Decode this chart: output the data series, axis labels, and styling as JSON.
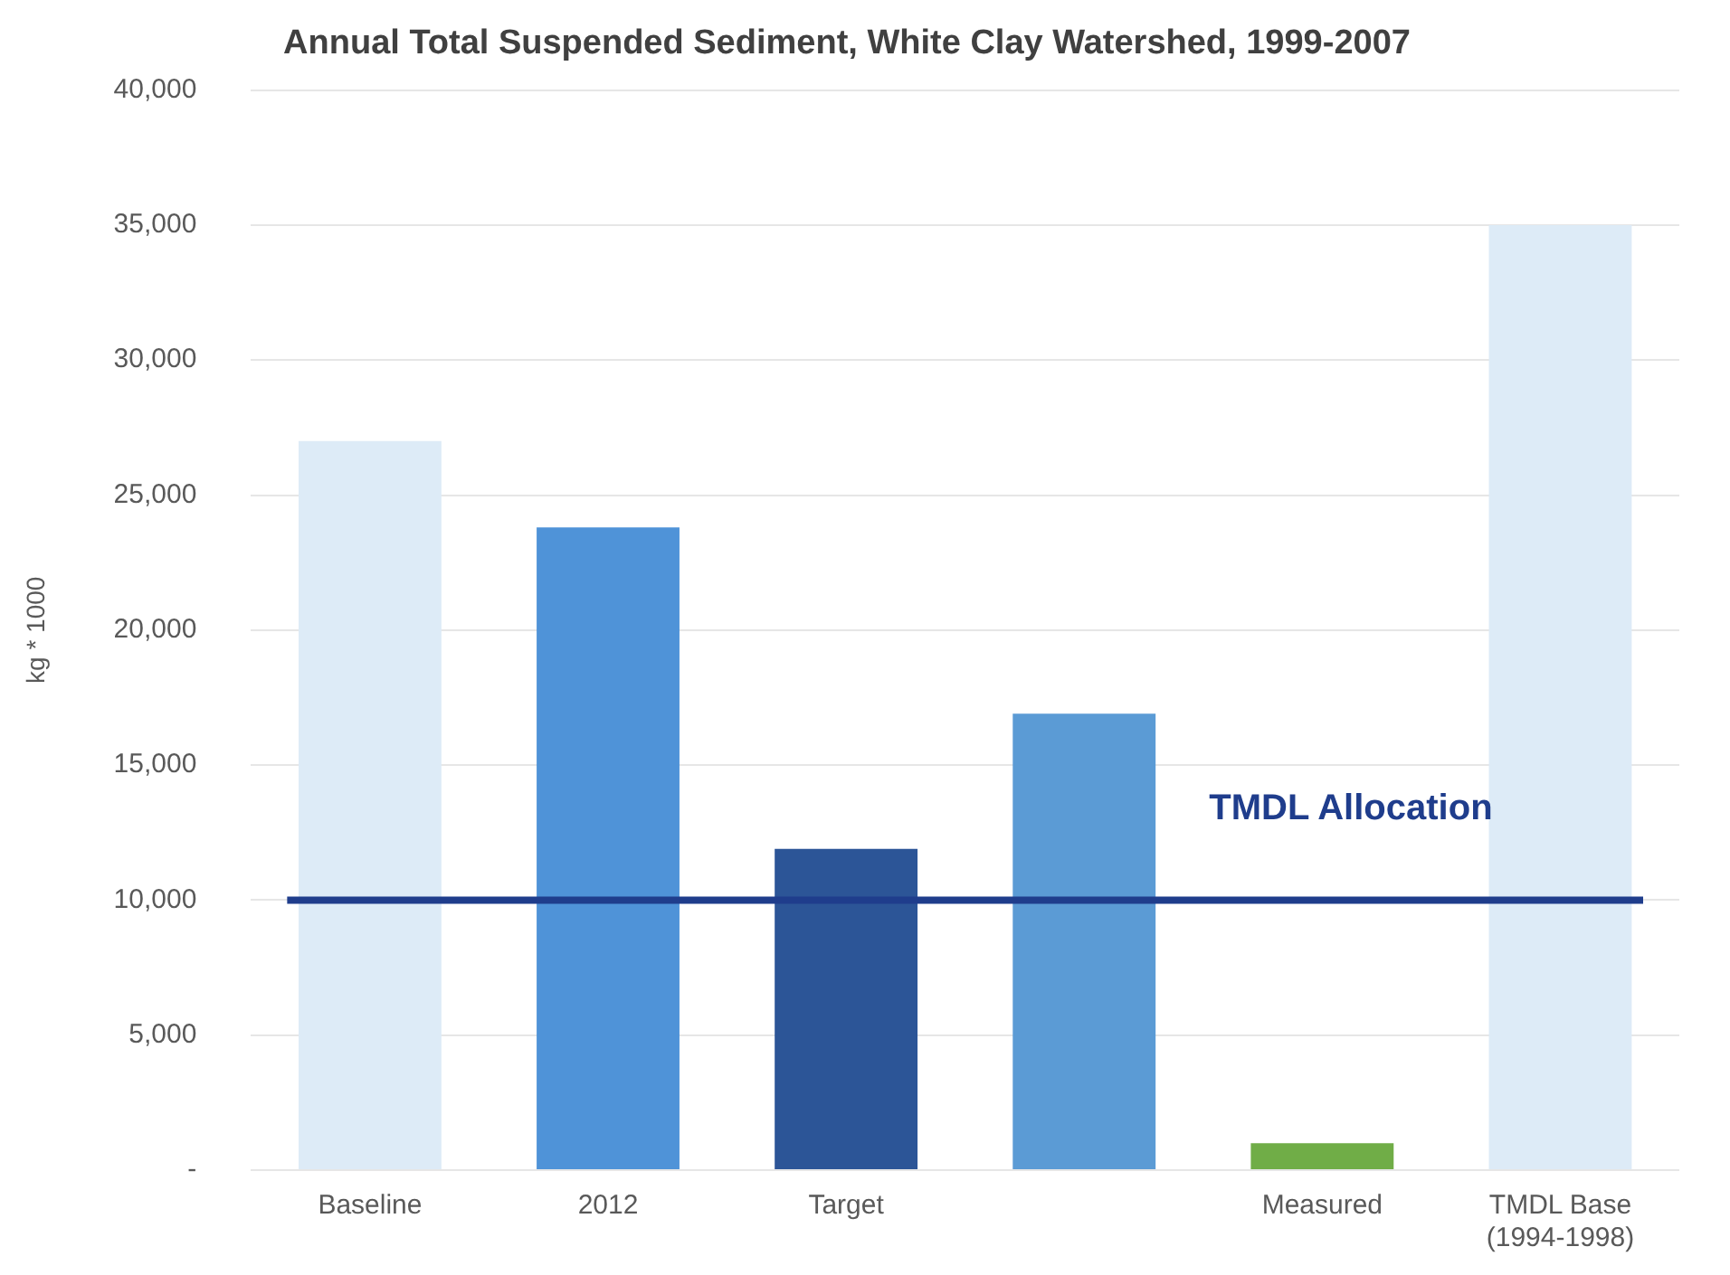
{
  "chart_data": {
    "type": "bar",
    "title": "Annual Total Suspended Sediment, White Clay Watershed, 1999-2007",
    "ylabel": "kg * 1000",
    "categories": [
      "Baseline",
      "2012",
      "Target",
      null,
      "Measured",
      "TMDL Base (1994-1998)"
    ],
    "values": [
      27000,
      23800,
      11900,
      16900,
      1000,
      35000
    ],
    "colors": [
      "#ddebf7",
      "#4f93d8",
      "#2c5597",
      "#5b9bd5",
      "#70ad47",
      "#ddebf7"
    ],
    "ylim": [
      0,
      40000
    ],
    "yticks": [
      {
        "value": 0,
        "label": "-"
      },
      {
        "value": 5000,
        "label": "5,000"
      },
      {
        "value": 10000,
        "label": "10,000"
      },
      {
        "value": 15000,
        "label": "15,000"
      },
      {
        "value": 20000,
        "label": "20,000"
      },
      {
        "value": 25000,
        "label": "25,000"
      },
      {
        "value": 30000,
        "label": "30,000"
      },
      {
        "value": 35000,
        "label": "35,000"
      },
      {
        "value": 40000,
        "label": "40,000"
      }
    ],
    "grid": "y",
    "ref_lines": [
      {
        "axis": "y",
        "value": 10000,
        "label": "TMDL Allocation",
        "color": "#1f3d8c"
      }
    ]
  }
}
